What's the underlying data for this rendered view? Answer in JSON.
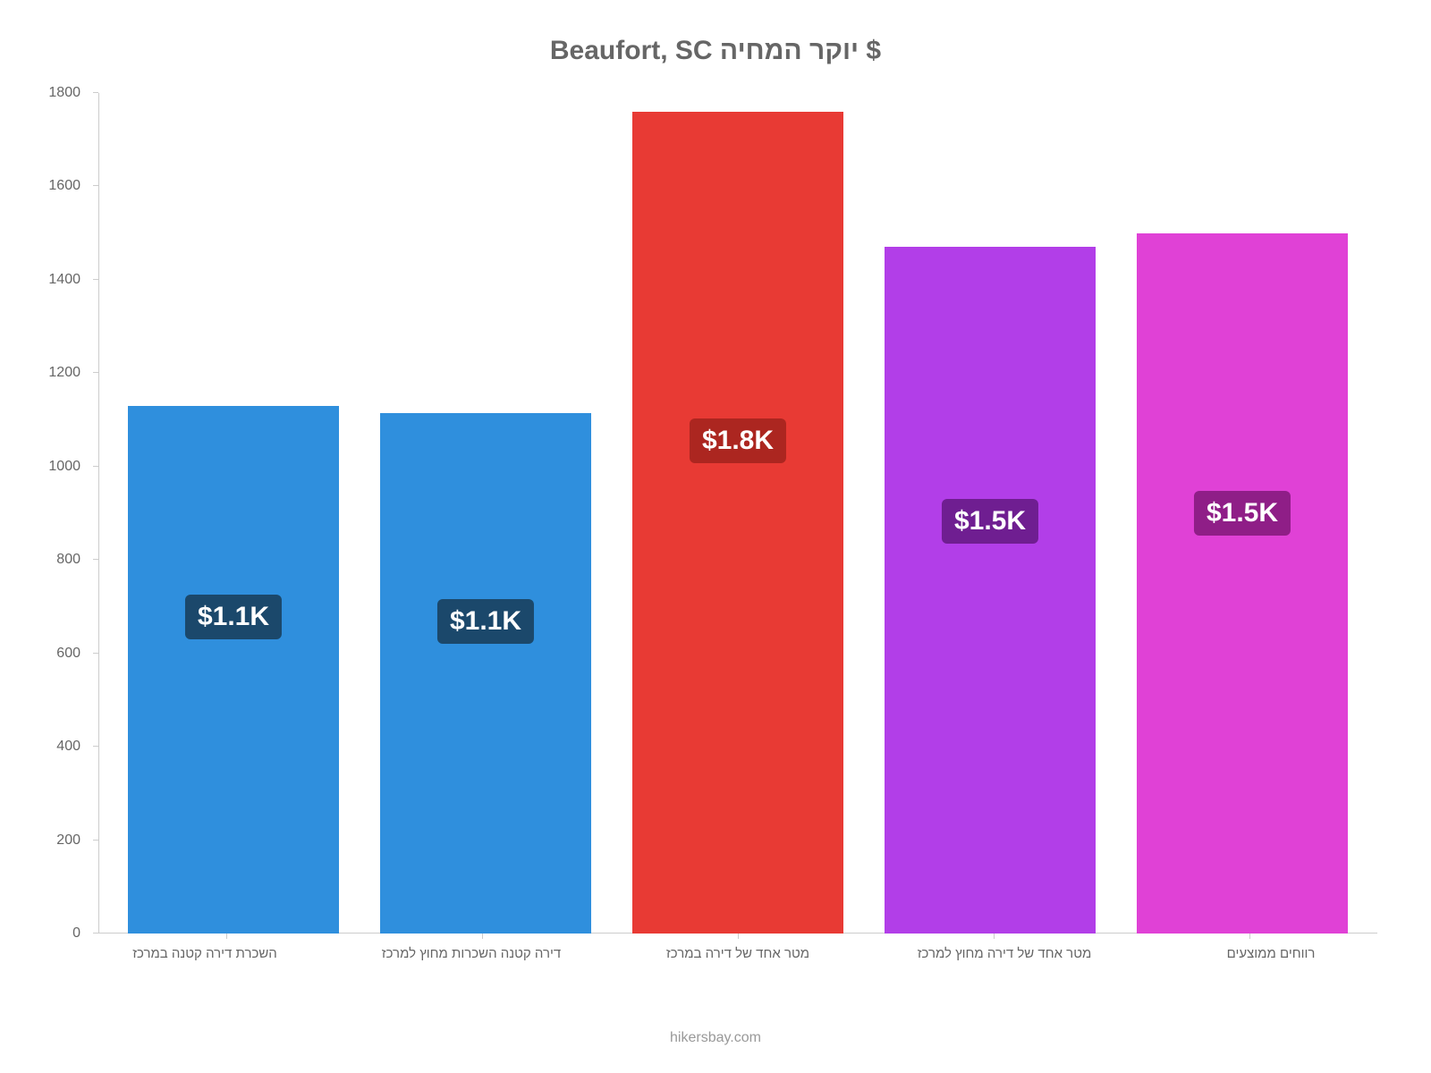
{
  "chart": {
    "type": "bar",
    "title": "Beaufort, SC יוקר המחיה $",
    "title_fontsize": 30,
    "title_color": "#666666",
    "background_color": "#ffffff",
    "axis_color": "#cccccc",
    "tick_label_color": "#666666",
    "tick_label_fontsize": 16,
    "x_label_fontsize": 15,
    "ylim": [
      0,
      1800
    ],
    "ytick_step": 200,
    "yticks": [
      0,
      200,
      400,
      600,
      800,
      1000,
      1200,
      1400,
      1600,
      1800
    ],
    "bar_width_pct": 84,
    "badge_fontsize": 30,
    "categories": [
      "השכרת דירה קטנה במרכז",
      "דירה קטנה השכרות מחוץ למרכז",
      "מטר אחד של דירה במרכז",
      "מטר אחד של דירה מחוץ למרכז",
      "רווחים ממוצעים"
    ],
    "values": [
      1130,
      1115,
      1760,
      1470,
      1500
    ],
    "bar_colors": [
      "#2f8fdd",
      "#2f8fdd",
      "#e83a34",
      "#b23ee8",
      "#e041d6"
    ],
    "badge_bg_colors": [
      "#1b486b",
      "#1b486b",
      "#ac2620",
      "#6f1e91",
      "#8f1e87"
    ],
    "badge_text_color": "#ffffff",
    "badge_labels": [
      "$1.1K",
      "$1.1K",
      "$1.8K",
      "$1.5K",
      "$1.5K"
    ],
    "credit": "hikersbay.com",
    "credit_color": "#999999",
    "credit_fontsize": 16
  }
}
